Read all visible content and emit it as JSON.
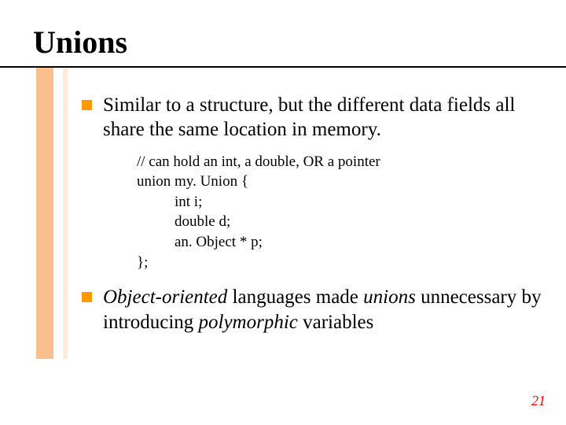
{
  "title": "Unions",
  "colors": {
    "accent_thick": "#fabf8f",
    "accent_thin": "#fdeada",
    "bullet_marker": "#ff9900",
    "page_number": "#ff0000",
    "underline": "#000000",
    "background": "#ffffff",
    "text": "#000000"
  },
  "typography": {
    "title_fontsize": 40,
    "body_fontsize": 25,
    "code_fontsize": 19,
    "pagenum_fontsize": 18
  },
  "bullets": [
    {
      "text": "Similar to a structure, but the different data fields all share the same location in memory."
    },
    {
      "html_parts": [
        {
          "t": "Object-oriented",
          "i": true
        },
        {
          "t": " languages made ",
          "i": false
        },
        {
          "t": "unions",
          "i": true
        },
        {
          "t": " unnecessary by introducing ",
          "i": false
        },
        {
          "t": "polymorphic",
          "i": true
        },
        {
          "t": " variables",
          "i": false
        }
      ]
    }
  ],
  "code": {
    "lines": [
      {
        "text": "// can hold an int, a double, OR a pointer",
        "indent": 0
      },
      {
        "text": "union my. Union {",
        "indent": 0
      },
      {
        "text": "int i;",
        "indent": 1
      },
      {
        "text": "double d;",
        "indent": 1
      },
      {
        "text": "an. Object * p;",
        "indent": 1
      },
      {
        "text": "};",
        "indent": 0
      }
    ]
  },
  "page_number": "21"
}
